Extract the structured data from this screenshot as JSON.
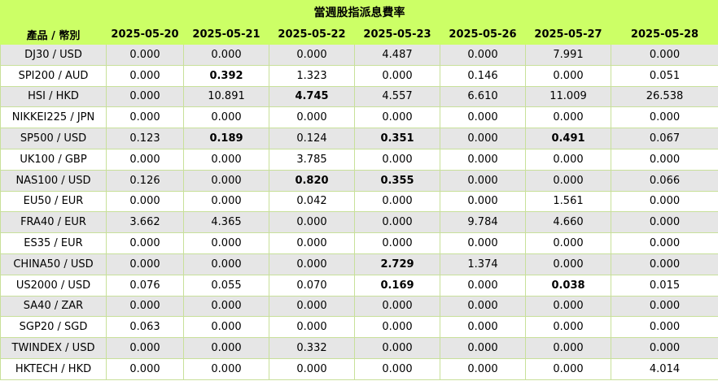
{
  "title": "當週股指派息費率",
  "header": {
    "product": "產品 / 幣別",
    "dates": [
      "2025-05-20",
      "2025-05-21",
      "2025-05-22",
      "2025-05-23",
      "2025-05-26",
      "2025-05-27",
      "2025-05-28"
    ]
  },
  "rows": [
    {
      "product": "DJ30 / USD",
      "values": [
        "0.000",
        "0.000",
        "0.000",
        "4.487",
        "0.000",
        "7.991",
        "0.000"
      ],
      "bold": []
    },
    {
      "product": "SPI200 / AUD",
      "values": [
        "0.000",
        "0.392",
        "1.323",
        "0.000",
        "0.146",
        "0.000",
        "0.051"
      ],
      "bold": [
        1
      ]
    },
    {
      "product": "HSI / HKD",
      "values": [
        "0.000",
        "10.891",
        "4.745",
        "4.557",
        "6.610",
        "11.009",
        "26.538"
      ],
      "bold": [
        2
      ]
    },
    {
      "product": "NIKKEI225 / JPN",
      "values": [
        "0.000",
        "0.000",
        "0.000",
        "0.000",
        "0.000",
        "0.000",
        "0.000"
      ],
      "bold": []
    },
    {
      "product": "SP500 / USD",
      "values": [
        "0.123",
        "0.189",
        "0.124",
        "0.351",
        "0.000",
        "0.491",
        "0.067"
      ],
      "bold": [
        1,
        3,
        5
      ]
    },
    {
      "product": "UK100 / GBP",
      "values": [
        "0.000",
        "0.000",
        "3.785",
        "0.000",
        "0.000",
        "0.000",
        "0.000"
      ],
      "bold": []
    },
    {
      "product": "NAS100 / USD",
      "values": [
        "0.126",
        "0.000",
        "0.820",
        "0.355",
        "0.000",
        "0.000",
        "0.066"
      ],
      "bold": [
        2,
        3
      ]
    },
    {
      "product": "EU50 / EUR",
      "values": [
        "0.000",
        "0.000",
        "0.042",
        "0.000",
        "0.000",
        "1.561",
        "0.000"
      ],
      "bold": []
    },
    {
      "product": "FRA40 / EUR",
      "values": [
        "3.662",
        "4.365",
        "0.000",
        "0.000",
        "9.784",
        "4.660",
        "0.000"
      ],
      "bold": []
    },
    {
      "product": "ES35 / EUR",
      "values": [
        "0.000",
        "0.000",
        "0.000",
        "0.000",
        "0.000",
        "0.000",
        "0.000"
      ],
      "bold": []
    },
    {
      "product": "CHINA50 / USD",
      "values": [
        "0.000",
        "0.000",
        "0.000",
        "2.729",
        "1.374",
        "0.000",
        "0.000"
      ],
      "bold": [
        3
      ]
    },
    {
      "product": "US2000 / USD",
      "values": [
        "0.076",
        "0.055",
        "0.070",
        "0.169",
        "0.000",
        "0.038",
        "0.015"
      ],
      "bold": [
        3,
        5
      ]
    },
    {
      "product": "SA40 / ZAR",
      "values": [
        "0.000",
        "0.000",
        "0.000",
        "0.000",
        "0.000",
        "0.000",
        "0.000"
      ],
      "bold": []
    },
    {
      "product": "SGP20 / SGD",
      "values": [
        "0.063",
        "0.000",
        "0.000",
        "0.000",
        "0.000",
        "0.000",
        "0.000"
      ],
      "bold": []
    },
    {
      "product": "TWINDEX / USD",
      "values": [
        "0.000",
        "0.000",
        "0.332",
        "0.000",
        "0.000",
        "0.000",
        "0.000"
      ],
      "bold": []
    },
    {
      "product": "HKTECH / HKD",
      "values": [
        "0.000",
        "0.000",
        "0.000",
        "0.000",
        "0.000",
        "0.000",
        "4.014"
      ],
      "bold": []
    }
  ]
}
